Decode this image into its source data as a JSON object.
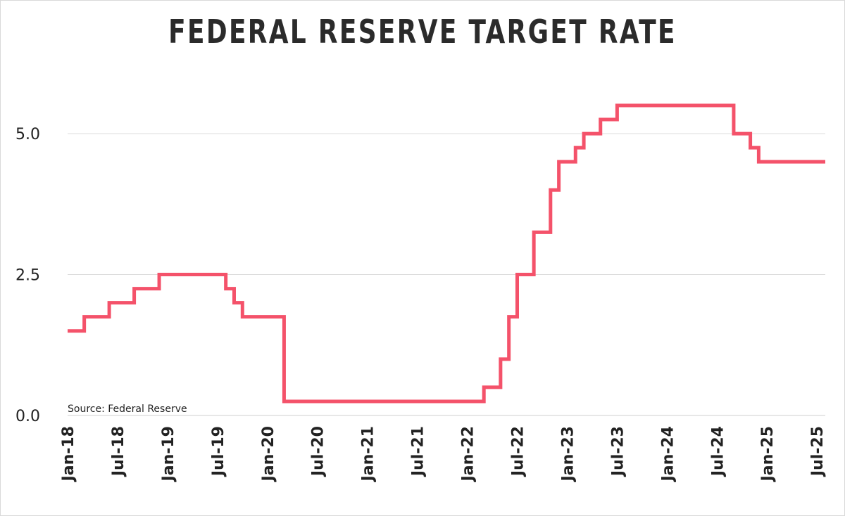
{
  "chart_data": {
    "type": "line",
    "title": "FEDERAL RESERVE TARGET RATE",
    "source": "Source: Federal Reserve",
    "color": "#f4526a",
    "step": true,
    "ylim": [
      0,
      5.5
    ],
    "y_ticks": [
      {
        "value": 0,
        "label": "0.0"
      },
      {
        "value": 2.5,
        "label": "2.5"
      },
      {
        "value": 5,
        "label": "5.0"
      }
    ],
    "x_range": [
      "2018-01",
      "2025-08"
    ],
    "x_ticks": [
      "Jan-18",
      "Jul-18",
      "Jan-19",
      "Jul-19",
      "Jan-20",
      "Jul-20",
      "Jan-21",
      "Jul-21",
      "Jan-22",
      "Jul-22",
      "Jan-23",
      "Jul-23",
      "Jan-24",
      "Jul-24",
      "Jan-25",
      "Jul-25"
    ],
    "series": [
      {
        "points": [
          {
            "x": "2018-01",
            "y": 1.5
          },
          {
            "x": "2018-03",
            "y": 1.75
          },
          {
            "x": "2018-06",
            "y": 2.0
          },
          {
            "x": "2018-09",
            "y": 2.25
          },
          {
            "x": "2018-12",
            "y": 2.5
          },
          {
            "x": "2019-08",
            "y": 2.25
          },
          {
            "x": "2019-09",
            "y": 2.0
          },
          {
            "x": "2019-10",
            "y": 1.75
          },
          {
            "x": "2020-03",
            "y": 1.25
          },
          {
            "x": "2020-03",
            "y": 0.25
          },
          {
            "x": "2022-03",
            "y": 0.5
          },
          {
            "x": "2022-05",
            "y": 1.0
          },
          {
            "x": "2022-06",
            "y": 1.75
          },
          {
            "x": "2022-07",
            "y": 2.5
          },
          {
            "x": "2022-09",
            "y": 3.25
          },
          {
            "x": "2022-11",
            "y": 4.0
          },
          {
            "x": "2022-12",
            "y": 4.5
          },
          {
            "x": "2023-02",
            "y": 4.75
          },
          {
            "x": "2023-03",
            "y": 5.0
          },
          {
            "x": "2023-05",
            "y": 5.25
          },
          {
            "x": "2023-07",
            "y": 5.5
          },
          {
            "x": "2024-09",
            "y": 5.0
          },
          {
            "x": "2024-11",
            "y": 4.75
          },
          {
            "x": "2024-12",
            "y": 4.5
          },
          {
            "x": "2025-08",
            "y": 4.5
          }
        ]
      }
    ]
  }
}
